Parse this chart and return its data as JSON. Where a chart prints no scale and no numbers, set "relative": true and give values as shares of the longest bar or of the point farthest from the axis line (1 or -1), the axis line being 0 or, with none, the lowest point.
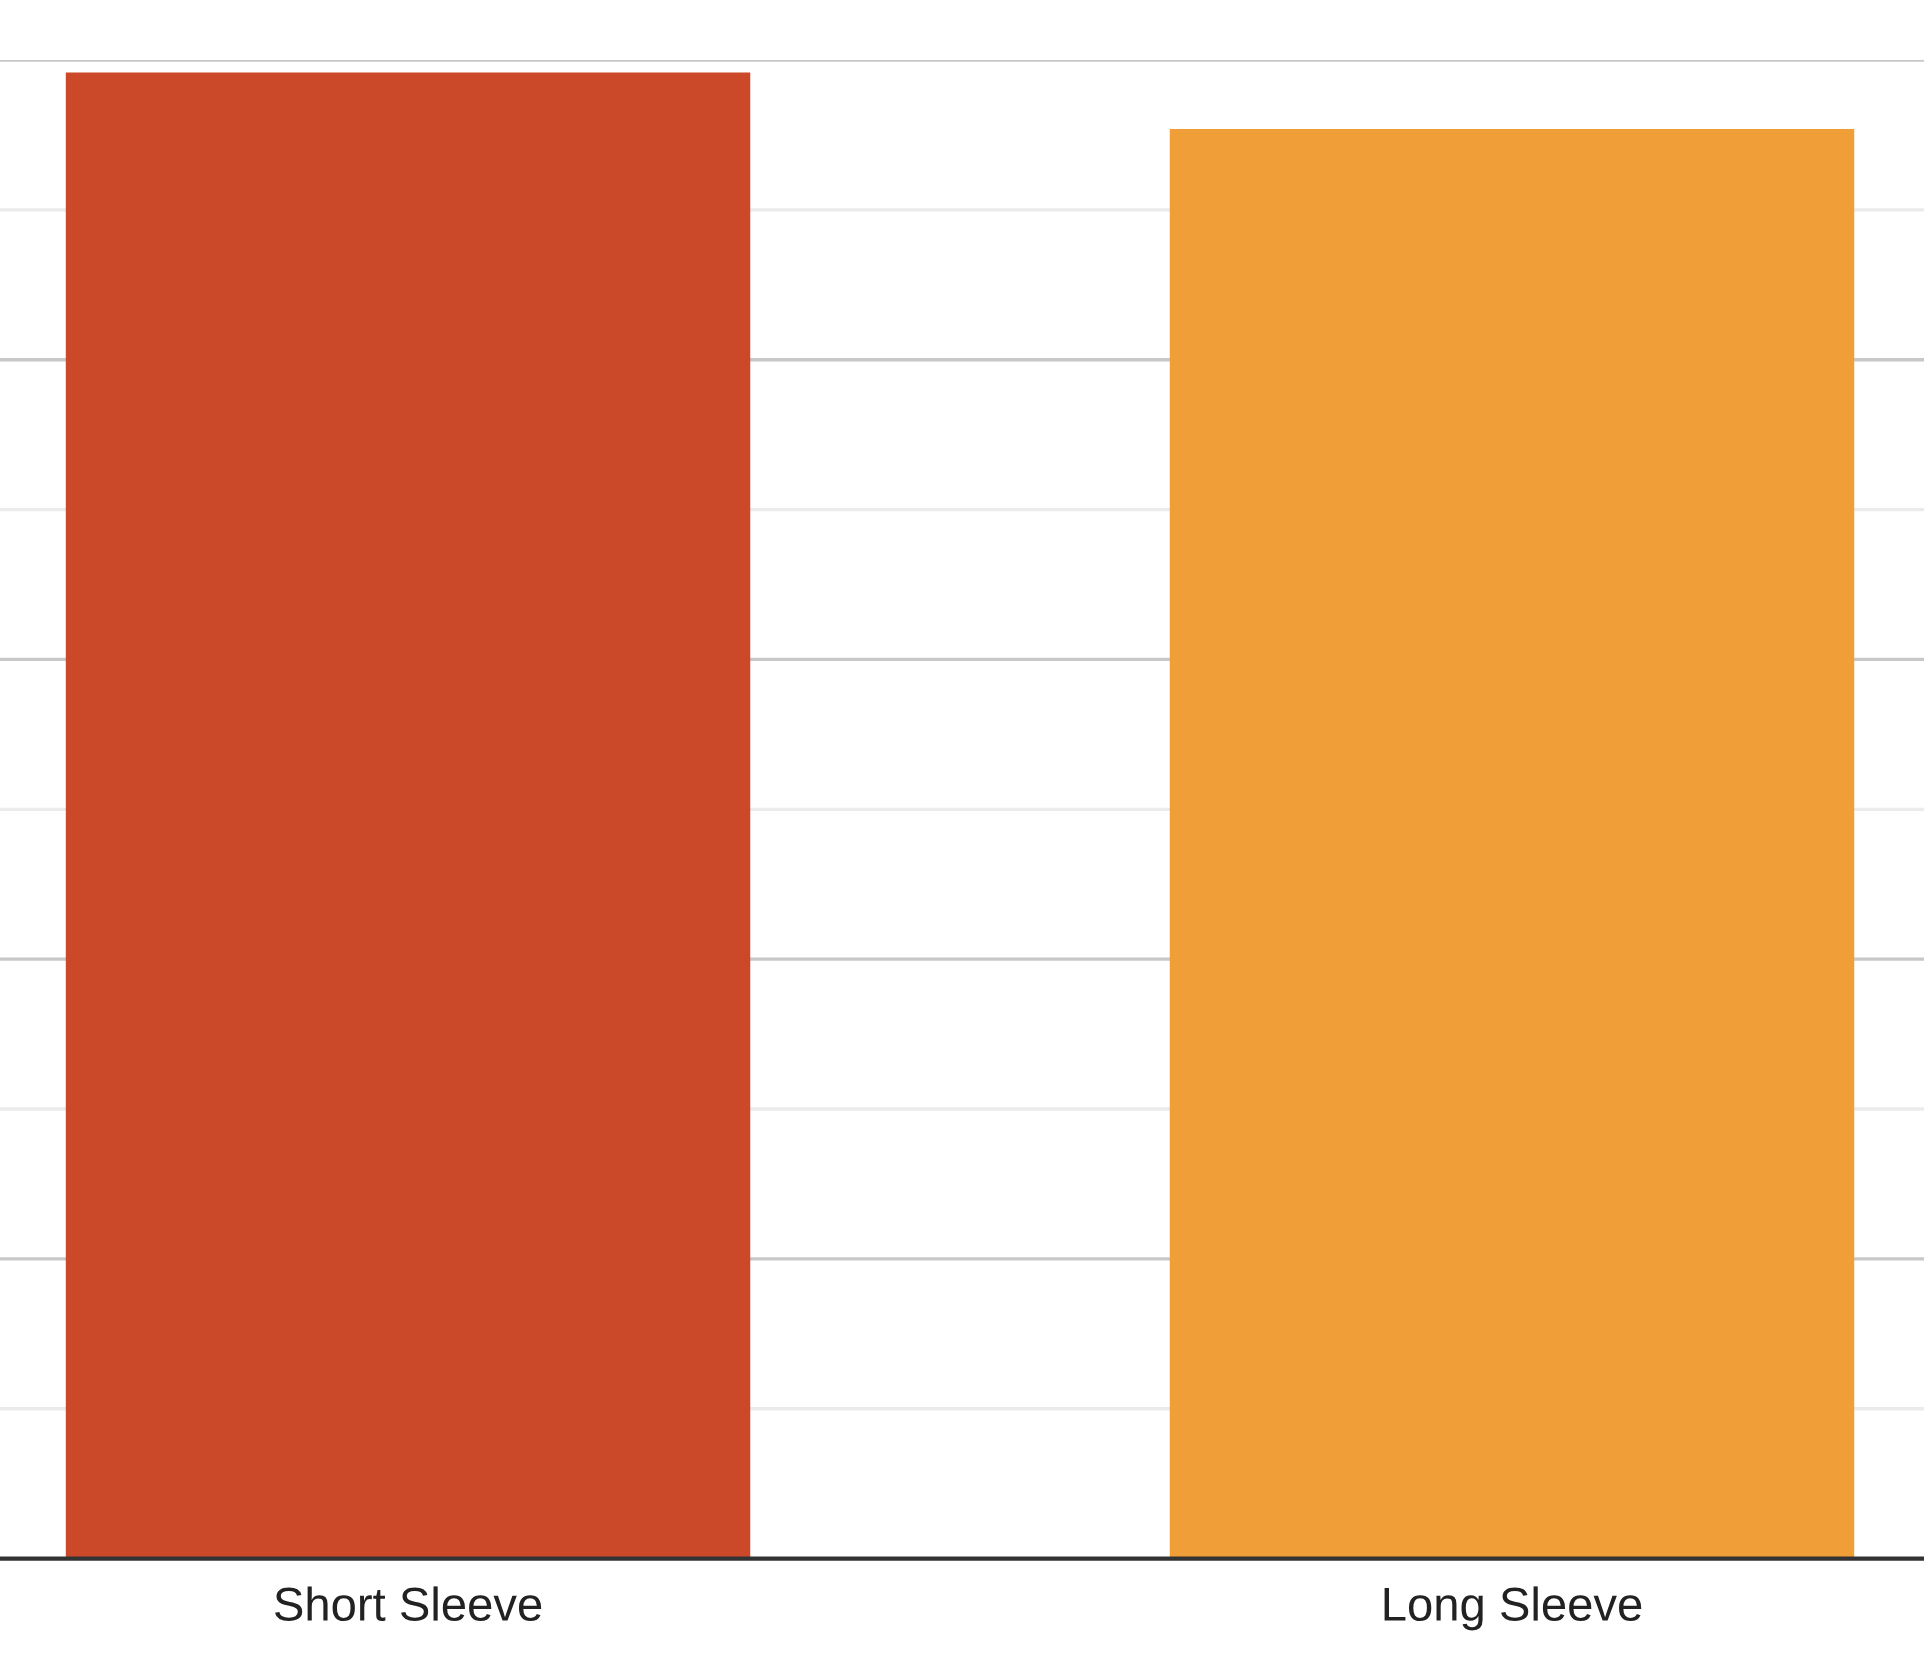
{
  "chart_data": {
    "type": "bar",
    "categories": [
      "Short Sleeve",
      "Long Sleeve"
    ],
    "values": [
      1,
      0.962
    ],
    "colors": [
      "#cb4828",
      "#f09e38"
    ],
    "relative": true,
    "grid": "y"
  }
}
